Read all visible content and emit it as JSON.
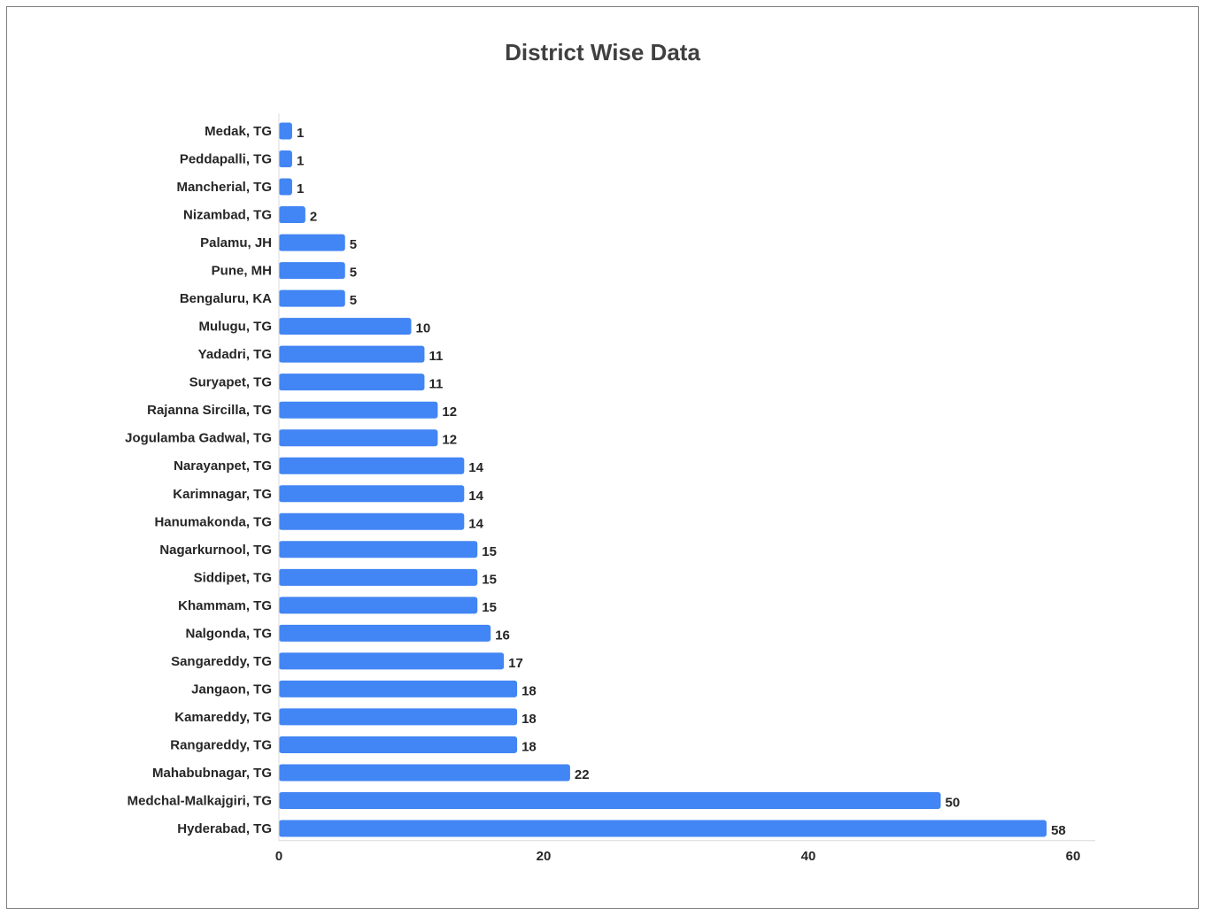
{
  "chart_data": {
    "type": "bar",
    "orientation": "horizontal",
    "title": "District Wise Data",
    "xlabel": "",
    "ylabel": "",
    "xlim": [
      0,
      60
    ],
    "x_ticks": [
      "0",
      "20",
      "40",
      "60"
    ],
    "grid": false,
    "legend": "none",
    "bar_color": "#4285f4",
    "categories": [
      "Medak, TG",
      "Peddapalli, TG",
      "Mancherial, TG",
      "Nizambad, TG",
      "Palamu, JH",
      "Pune, MH",
      "Bengaluru, KA",
      "Mulugu, TG",
      "Yadadri, TG",
      "Suryapet, TG",
      "Rajanna Sircilla, TG",
      "Jogulamba Gadwal, TG",
      "Narayanpet, TG",
      "Karimnagar, TG",
      "Hanumakonda, TG",
      "Nagarkurnool, TG",
      "Siddipet, TG",
      "Khammam, TG",
      "Nalgonda, TG",
      "Sangareddy, TG",
      "Jangaon, TG",
      "Kamareddy, TG",
      "Rangareddy, TG",
      "Mahabubnagar, TG",
      "Medchal-Malkajgiri, TG",
      "Hyderabad, TG"
    ],
    "values": [
      1,
      1,
      1,
      2,
      5,
      5,
      5,
      10,
      11,
      11,
      12,
      12,
      14,
      14,
      14,
      15,
      15,
      15,
      16,
      17,
      18,
      18,
      18,
      22,
      50,
      58
    ]
  }
}
